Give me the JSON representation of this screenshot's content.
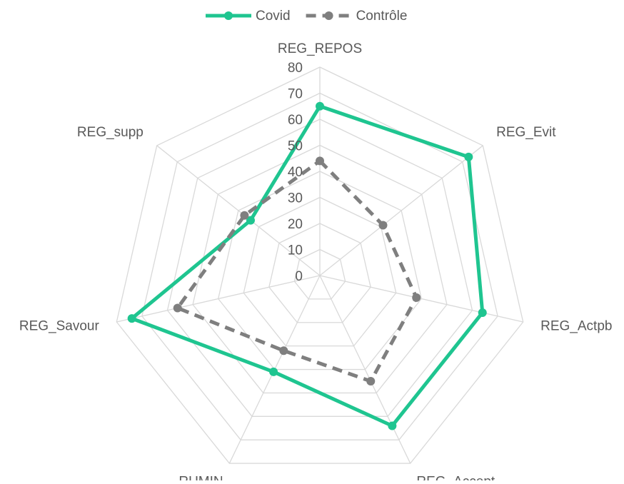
{
  "chart_data": {
    "type": "radar",
    "categories": [
      "REG_REPOS",
      "REG_Evit",
      "REG_Actpb",
      "REG_Accept",
      "RUMIN",
      "REG_Savour",
      "REG_supp"
    ],
    "series": [
      {
        "name": "Covid",
        "color": "#1fc590",
        "dash": false,
        "values": [
          65,
          73,
          64,
          64,
          41,
          74,
          34
        ]
      },
      {
        "name": "Contrôle",
        "color": "#7f7f7f",
        "dash": true,
        "values": [
          44,
          31,
          38,
          45,
          32,
          56,
          37
        ]
      }
    ],
    "ylim": [
      0,
      80
    ],
    "yticks": [
      0,
      10,
      20,
      30,
      40,
      50,
      60,
      70,
      80
    ],
    "grid": true,
    "legend": "top"
  }
}
